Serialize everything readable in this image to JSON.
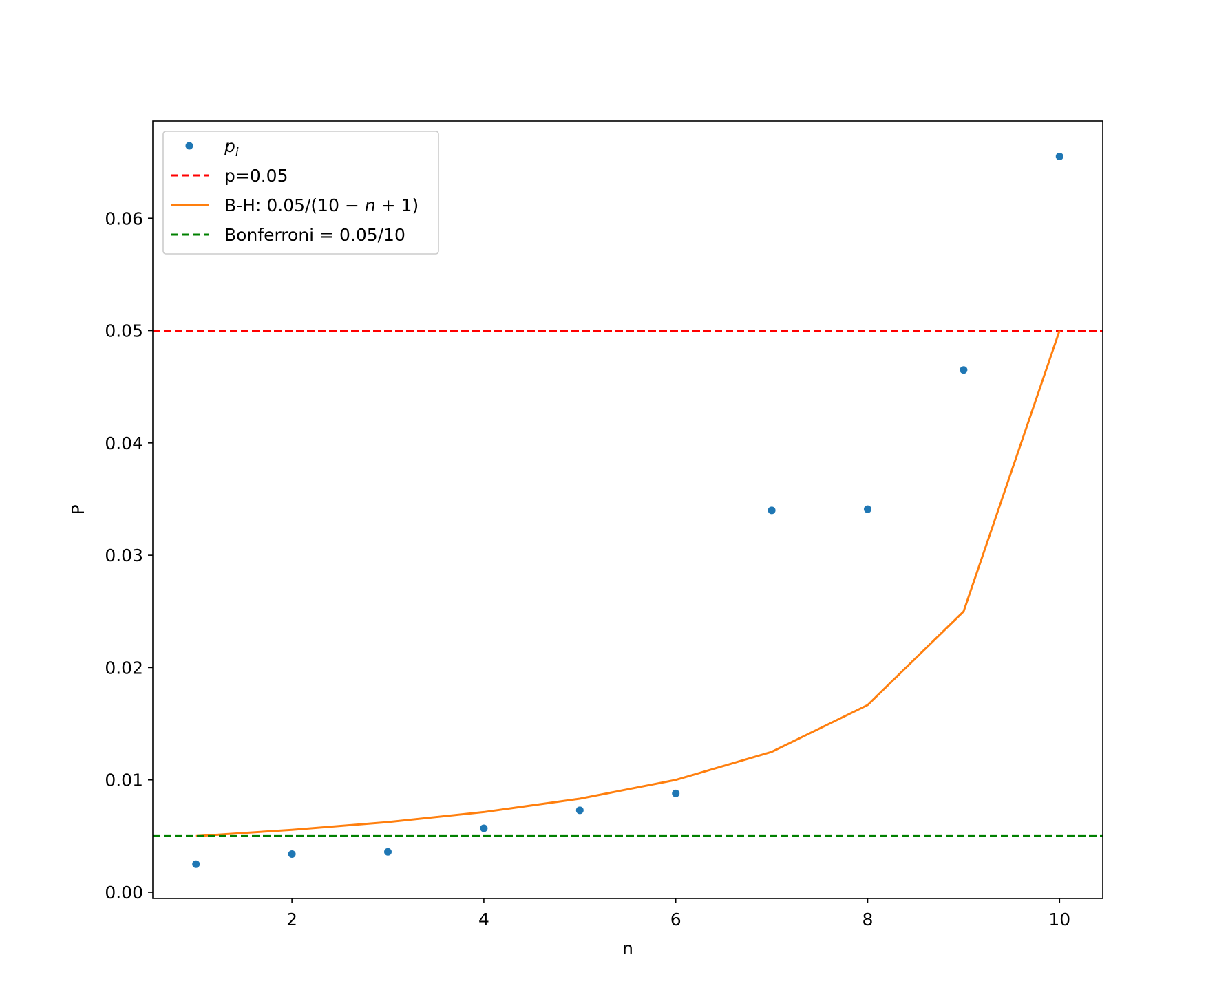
{
  "chart_data": {
    "type": "scatter",
    "title": "",
    "xlabel": "n",
    "ylabel": "P",
    "xlim": [
      0.55,
      10.45
    ],
    "ylim": [
      -0.00055,
      0.06865
    ],
    "xticks": [
      2,
      4,
      6,
      8,
      10
    ],
    "xtick_labels": [
      "2",
      "4",
      "6",
      "8",
      "10"
    ],
    "yticks": [
      0.0,
      0.01,
      0.02,
      0.03,
      0.04,
      0.05,
      0.06
    ],
    "ytick_labels": [
      "0.00",
      "0.01",
      "0.02",
      "0.03",
      "0.04",
      "0.05",
      "0.06"
    ],
    "grid": false,
    "legend_position": "top-left",
    "series": [
      {
        "name_math": "p",
        "name_sub": "i",
        "kind": "points",
        "color": "#1f77b4",
        "x": [
          1,
          2,
          3,
          4,
          5,
          6,
          7,
          8,
          9,
          10
        ],
        "y": [
          0.0025,
          0.0034,
          0.0036,
          0.0057,
          0.0073,
          0.0088,
          0.034,
          0.0341,
          0.0465,
          0.0655
        ]
      },
      {
        "name": "p=0.05",
        "kind": "hline",
        "style": "dashed",
        "color": "#ff0000",
        "y": 0.05
      },
      {
        "name_parts": [
          "B-H: 0.05/(10 − ",
          "n",
          " + 1)"
        ],
        "kind": "line",
        "style": "solid",
        "color": "#ff7f0e",
        "x": [
          1,
          2,
          3,
          4,
          5,
          6,
          7,
          8,
          9,
          10
        ],
        "y": [
          0.005,
          0.00556,
          0.00625,
          0.00714,
          0.00833,
          0.01,
          0.0125,
          0.01667,
          0.025,
          0.05
        ]
      },
      {
        "name": "Bonferroni = 0.05/10",
        "kind": "hline",
        "style": "dashed",
        "color": "#008000",
        "y": 0.005
      }
    ]
  }
}
